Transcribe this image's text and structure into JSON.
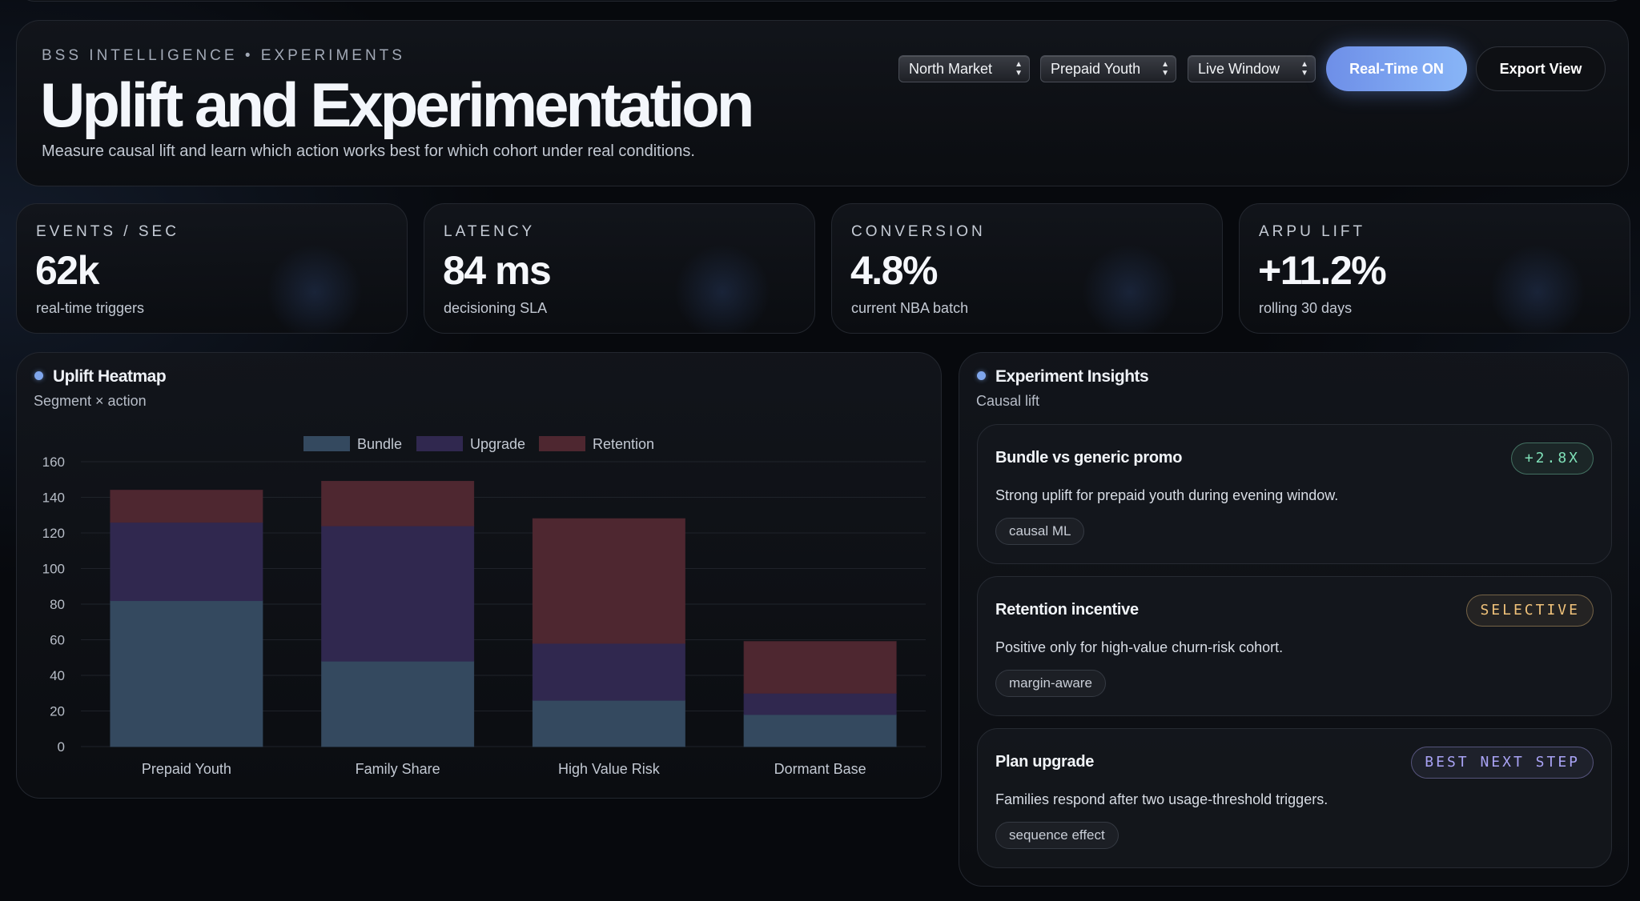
{
  "header": {
    "eyebrow": "BSS INTELLIGENCE • EXPERIMENTS",
    "title": "Uplift and Experimentation",
    "subtitle": "Measure causal lift and learn which action works best for which cohort under real conditions.",
    "filters": [
      "North Market",
      "Prepaid Youth",
      "Live Window"
    ],
    "realtime_button": "Real-Time ON",
    "export_button": "Export View"
  },
  "kpis": [
    {
      "label": "EVENTS / SEC",
      "value": "62k",
      "note": "real-time triggers"
    },
    {
      "label": "LATENCY",
      "value": "84 ms",
      "note": "decisioning SLA"
    },
    {
      "label": "CONVERSION",
      "value": "4.8%",
      "note": "current NBA batch"
    },
    {
      "label": "ARPU LIFT",
      "value": "+11.2%",
      "note": "rolling 30 days"
    }
  ],
  "heatmap": {
    "title": "Uplift Heatmap",
    "subtitle": "Segment × action"
  },
  "chart_data": {
    "type": "bar",
    "stacked": true,
    "categories": [
      "Prepaid Youth",
      "Family Share",
      "High Value Risk",
      "Dormant Base"
    ],
    "series": [
      {
        "name": "Bundle",
        "values": [
          82,
          48,
          26,
          18
        ],
        "color": "#34495f"
      },
      {
        "name": "Upgrade",
        "values": [
          44,
          76,
          32,
          12
        ],
        "color": "#30284f"
      },
      {
        "name": "Retention",
        "values": [
          18,
          25,
          70,
          29
        ],
        "color": "#4e2730"
      }
    ],
    "ylim": [
      0,
      160
    ],
    "yticks": [
      0,
      20,
      40,
      60,
      80,
      100,
      120,
      140,
      160
    ],
    "grid": true,
    "legend": "top-center"
  },
  "insights": {
    "title": "Experiment Insights",
    "subtitle": "Causal lift",
    "items": [
      {
        "title": "Bundle vs generic promo",
        "badge": "+2.8X",
        "description": "Strong uplift for prepaid youth during evening window.",
        "tag": "causal ML",
        "badge_color": "#7fe0b8"
      },
      {
        "title": "Retention incentive",
        "badge": "SELECTIVE",
        "description": "Positive only for high-value churn-risk cohort.",
        "tag": "margin-aware",
        "badge_color": "#f0c27a"
      },
      {
        "title": "Plan upgrade",
        "badge": "BEST NEXT STEP",
        "description": "Families respond after two usage-threshold triggers.",
        "tag": "sequence effect",
        "badge_color": "#a9a3f5"
      }
    ]
  }
}
